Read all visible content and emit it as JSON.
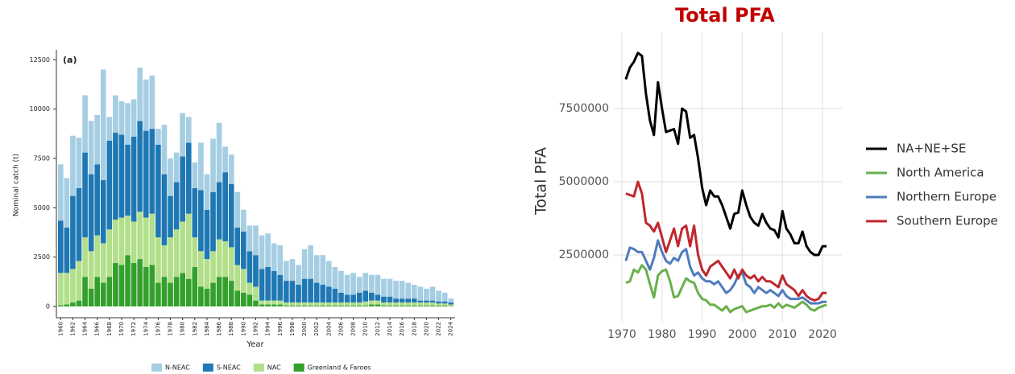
{
  "chart_data": [
    {
      "type": "bar",
      "stacked": true,
      "annotation": "(a)",
      "xlabel": "Year",
      "ylabel": "Nominal catch (t)",
      "legend": "bottom",
      "grid": false,
      "x": [
        1960,
        1961,
        1962,
        1963,
        1964,
        1965,
        1966,
        1967,
        1968,
        1969,
        1970,
        1971,
        1972,
        1973,
        1974,
        1975,
        1976,
        1977,
        1978,
        1979,
        1980,
        1981,
        1982,
        1983,
        1984,
        1985,
        1986,
        1987,
        1988,
        1989,
        1990,
        1991,
        1992,
        1993,
        1994,
        1995,
        1996,
        1997,
        1998,
        1999,
        2000,
        2001,
        2002,
        2003,
        2004,
        2005,
        2006,
        2007,
        2008,
        2009,
        2010,
        2011,
        2012,
        2013,
        2014,
        2015,
        2016,
        2017,
        2018,
        2019,
        2020,
        2021,
        2022,
        2023,
        2024
      ],
      "xlim": [
        1959.3,
        2024.7
      ],
      "xticks": [
        1960,
        1962,
        1964,
        1966,
        1968,
        1970,
        1972,
        1974,
        1976,
        1978,
        1980,
        1982,
        1984,
        1986,
        1988,
        1990,
        1992,
        1994,
        1996,
        1998,
        2000,
        2002,
        2004,
        2006,
        2008,
        2010,
        2012,
        2014,
        2016,
        2018,
        2020,
        2022,
        2024
      ],
      "ylim": [
        -570,
        13000
      ],
      "yticks": [
        0,
        2500,
        5000,
        7500,
        10000,
        12500
      ],
      "series": [
        {
          "name": "N-NEAC",
          "color": "#a6cee3",
          "values": [
            2850,
            2500,
            3050,
            2550,
            2900,
            2700,
            2500,
            5600,
            1200,
            1900,
            1700,
            2100,
            1900,
            2700,
            2600,
            2700,
            800,
            2500,
            1900,
            1500,
            2200,
            1300,
            1300,
            2400,
            1800,
            2700,
            3000,
            1300,
            1500,
            1800,
            1100,
            1300,
            1500,
            1700,
            1700,
            1400,
            1500,
            1000,
            1100,
            1000,
            1500,
            1700,
            1400,
            1500,
            1300,
            1100,
            1100,
            1000,
            1100,
            800,
            900,
            900,
            1000,
            900,
            900,
            900,
            900,
            800,
            700,
            700,
            600,
            700,
            550,
            450,
            200
          ]
        },
        {
          "name": "S-NEAC",
          "color": "#1f78b4",
          "values": [
            2650,
            2300,
            3700,
            3700,
            4300,
            3900,
            3600,
            3200,
            4500,
            4400,
            4200,
            3600,
            4300,
            4600,
            4400,
            4300,
            4700,
            3600,
            2100,
            2400,
            3300,
            3600,
            2500,
            3100,
            2500,
            3000,
            2900,
            3500,
            3200,
            1900,
            1900,
            1600,
            1600,
            1600,
            1700,
            1500,
            1300,
            1100,
            1100,
            900,
            1200,
            1200,
            1000,
            900,
            800,
            700,
            500,
            400,
            400,
            500,
            550,
            400,
            300,
            300,
            300,
            200,
            200,
            200,
            200,
            100,
            100,
            100,
            100,
            100,
            100
          ]
        },
        {
          "name": "NAC",
          "color": "#b2df8a",
          "values": [
            1640,
            1600,
            1700,
            2000,
            2000,
            1900,
            2100,
            2000,
            2400,
            2200,
            2400,
            2000,
            2100,
            2400,
            2500,
            2600,
            2300,
            1600,
            2300,
            2400,
            2600,
            3300,
            1500,
            1800,
            1500,
            1600,
            1900,
            1800,
            1700,
            1300,
            1200,
            600,
            700,
            200,
            200,
            200,
            200,
            150,
            150,
            150,
            150,
            150,
            150,
            150,
            150,
            150,
            150,
            150,
            150,
            150,
            200,
            200,
            200,
            150,
            150,
            150,
            150,
            150,
            150,
            150,
            150,
            150,
            100,
            100,
            70
          ]
        },
        {
          "name": "Greenland & Faroes",
          "color": "#33a02c",
          "values": [
            60,
            100,
            200,
            300,
            1500,
            900,
            1500,
            1200,
            1500,
            2200,
            2100,
            2600,
            2200,
            2400,
            2000,
            2100,
            1200,
            1500,
            1200,
            1500,
            1700,
            1400,
            2000,
            1000,
            900,
            1200,
            1500,
            1500,
            1300,
            800,
            700,
            600,
            300,
            100,
            100,
            100,
            100,
            50,
            50,
            50,
            50,
            50,
            50,
            50,
            50,
            50,
            50,
            50,
            50,
            50,
            50,
            100,
            100,
            50,
            50,
            50,
            50,
            50,
            50,
            50,
            50,
            50,
            50,
            50,
            30
          ]
        }
      ]
    },
    {
      "type": "line",
      "title": "Total PFA",
      "ylabel": "Total PFA",
      "legend": "right",
      "grid": true,
      "x": [
        1971,
        1972,
        1973,
        1974,
        1975,
        1976,
        1977,
        1978,
        1979,
        1980,
        1981,
        1982,
        1983,
        1984,
        1985,
        1986,
        1987,
        1988,
        1989,
        1990,
        1991,
        1992,
        1993,
        1994,
        1995,
        1996,
        1997,
        1998,
        1999,
        2000,
        2001,
        2002,
        2003,
        2004,
        2005,
        2006,
        2007,
        2008,
        2009,
        2010,
        2011,
        2012,
        2013,
        2014,
        2015,
        2016,
        2017,
        2018,
        2019,
        2020,
        2021
      ],
      "xlim": [
        1968,
        2024.8
      ],
      "xticks": [
        1970,
        1980,
        1990,
        2000,
        2010,
        2020
      ],
      "ylim": [
        220000,
        10110000
      ],
      "yticks": [
        2500000,
        5000000,
        7500000
      ],
      "series": [
        {
          "name": "NA+NE+SE",
          "color": "#000000",
          "values": [
            8500000,
            8900000,
            9100000,
            9400000,
            9300000,
            8000000,
            7100000,
            6600000,
            8400000,
            7500000,
            6700000,
            6750000,
            6800000,
            6300000,
            7500000,
            7400000,
            6500000,
            6600000,
            5800000,
            4800000,
            4200000,
            4700000,
            4500000,
            4500000,
            4200000,
            3800000,
            3400000,
            3900000,
            3950000,
            4700000,
            4200000,
            3800000,
            3600000,
            3500000,
            3900000,
            3600000,
            3400000,
            3350000,
            3100000,
            4000000,
            3400000,
            3200000,
            2900000,
            2900000,
            3300000,
            2800000,
            2600000,
            2500000,
            2500000,
            2800000,
            2800000
          ]
        },
        {
          "name": "North America",
          "color": "#6ab04c",
          "values": [
            1550000,
            1600000,
            2000000,
            1900000,
            2150000,
            2000000,
            1500000,
            1050000,
            1800000,
            1950000,
            2000000,
            1600000,
            1050000,
            1100000,
            1400000,
            1700000,
            1600000,
            1550000,
            1200000,
            1000000,
            950000,
            800000,
            800000,
            700000,
            600000,
            750000,
            550000,
            650000,
            700000,
            750000,
            550000,
            600000,
            650000,
            700000,
            750000,
            750000,
            800000,
            700000,
            850000,
            700000,
            800000,
            750000,
            700000,
            800000,
            900000,
            800000,
            650000,
            600000,
            700000,
            750000,
            800000
          ]
        },
        {
          "name": "Northern Europe",
          "color": "#4f7bbd",
          "values": [
            2300000,
            2750000,
            2700000,
            2600000,
            2600000,
            2300000,
            2000000,
            2400000,
            3000000,
            2600000,
            2300000,
            2200000,
            2400000,
            2300000,
            2600000,
            2700000,
            2100000,
            1800000,
            1900000,
            1700000,
            1600000,
            1600000,
            1500000,
            1600000,
            1400000,
            1200000,
            1300000,
            1500000,
            1800000,
            1900000,
            1500000,
            1400000,
            1200000,
            1400000,
            1300000,
            1200000,
            1300000,
            1200000,
            1100000,
            1300000,
            1100000,
            1000000,
            1000000,
            1000000,
            1050000,
            950000,
            850000,
            850000,
            850000,
            900000,
            900000
          ]
        },
        {
          "name": "Southern Europe",
          "color": "#c0272d",
          "values": [
            4600000,
            4550000,
            4500000,
            5000000,
            4600000,
            3600000,
            3500000,
            3300000,
            3600000,
            3100000,
            2600000,
            3000000,
            3400000,
            2800000,
            3400000,
            3500000,
            2800000,
            3500000,
            2500000,
            2000000,
            1800000,
            2100000,
            2200000,
            2300000,
            2100000,
            1900000,
            1700000,
            2000000,
            1700000,
            2000000,
            1800000,
            1700000,
            1800000,
            1600000,
            1750000,
            1600000,
            1600000,
            1500000,
            1400000,
            1800000,
            1500000,
            1400000,
            1300000,
            1100000,
            1300000,
            1100000,
            1000000,
            950000,
            1000000,
            1200000,
            1200000
          ]
        }
      ]
    }
  ]
}
